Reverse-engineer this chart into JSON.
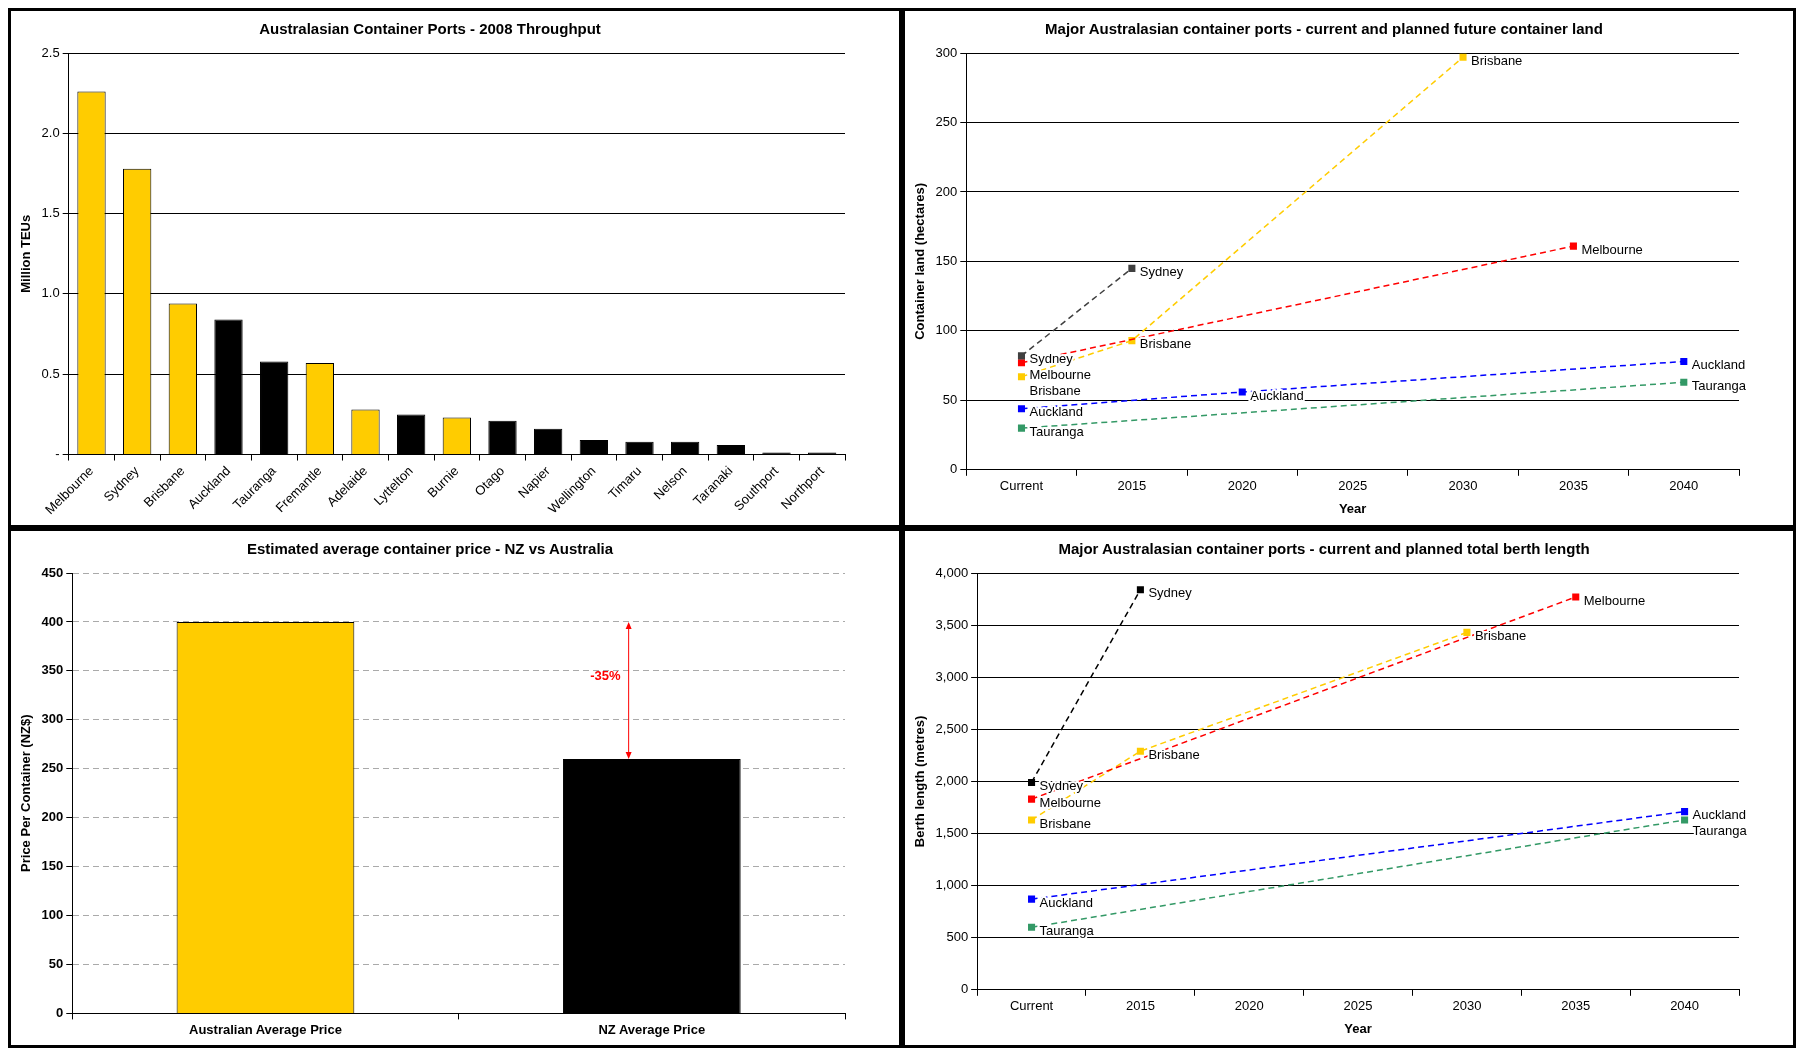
{
  "chart_data": [
    {
      "type": "bar",
      "title": "Australasian Container Ports - 2008 Throughput",
      "ylabel": "Million TEUs",
      "categories": [
        "Melbourne",
        "Sydney",
        "Brisbane",
        "Auckland",
        "Tauranga",
        "Fremantle",
        "Adelaide",
        "Lyttelton",
        "Burnie",
        "Otago",
        "Napier",
        "Wellington",
        "Timaru",
        "Nelson",
        "Taranaki",
        "Southport",
        "Northport"
      ],
      "values": [
        2.26,
        1.78,
        0.94,
        0.84,
        0.58,
        0.57,
        0.28,
        0.25,
        0.23,
        0.21,
        0.16,
        0.09,
        0.08,
        0.08,
        0.06,
        0.01,
        0.005
      ],
      "colors": [
        "#ffcc00",
        "#ffcc00",
        "#ffcc00",
        "#000000",
        "#000000",
        "#ffcc00",
        "#ffcc00",
        "#000000",
        "#ffcc00",
        "#000000",
        "#000000",
        "#000000",
        "#000000",
        "#000000",
        "#000000",
        "#000000",
        "#000000"
      ],
      "ylim": [
        0,
        2.5
      ],
      "yticks": [
        {
          "value": 0,
          "label": "-"
        },
        {
          "value": 0.5,
          "label": "0.5"
        },
        {
          "value": 1,
          "label": "1.0"
        },
        {
          "value": 1.5,
          "label": "1.5"
        },
        {
          "value": 2,
          "label": "2.0"
        },
        {
          "value": 2.5,
          "label": "2.5"
        }
      ],
      "grid": "y",
      "legend": false
    },
    {
      "type": "line",
      "title": "Major Australasian container ports - current and planned future container land",
      "xlabel": "Year",
      "ylabel": "Container land (hectares)",
      "categories": [
        "Current",
        "2015",
        "2020",
        "2025",
        "2030",
        "2035",
        "2040"
      ],
      "series": [
        {
          "name": "Sydney",
          "color": "#404040",
          "values": [
            82,
            145,
            null,
            null,
            null,
            null,
            null
          ]
        },
        {
          "name": "Melbourne",
          "color": "#ff0000",
          "values": [
            77,
            null,
            null,
            null,
            null,
            161,
            null
          ]
        },
        {
          "name": "Brisbane",
          "color": "#ffcc00",
          "values": [
            67,
            93,
            null,
            null,
            297,
            null,
            null
          ]
        },
        {
          "name": "Auckland",
          "color": "#0000ff",
          "values": [
            44,
            null,
            56,
            null,
            null,
            null,
            78
          ]
        },
        {
          "name": "Tauranga",
          "color": "#339966",
          "values": [
            30,
            null,
            null,
            null,
            null,
            null,
            63
          ]
        }
      ],
      "ylim": [
        0,
        300
      ],
      "yticks": [
        0,
        50,
        100,
        150,
        200,
        250,
        300
      ],
      "grid": "y",
      "legend": false,
      "marker": "square",
      "line_style": "dashed"
    },
    {
      "type": "bar",
      "title": "Estimated average container price - NZ vs Australia",
      "ylabel": "Price Per Container (NZ$)",
      "categories": [
        "Australian Average Price",
        "NZ Average Price"
      ],
      "values": [
        400,
        260
      ],
      "colors": [
        "#ffcc00",
        "#000000"
      ],
      "ylim": [
        0,
        450
      ],
      "yticks": [
        0,
        50,
        100,
        150,
        200,
        250,
        300,
        350,
        400,
        450
      ],
      "grid": "y",
      "legend": false,
      "annotations": [
        "-35%"
      ]
    },
    {
      "type": "line",
      "title": "Major Australasian container ports - current and planned total berth length",
      "xlabel": "Year",
      "ylabel": "Berth length (metres)",
      "categories": [
        "Current",
        "2015",
        "2020",
        "2025",
        "2030",
        "2035",
        "2040"
      ],
      "series": [
        {
          "name": "Sydney",
          "color": "#000000",
          "values": [
            1990,
            3840,
            null,
            null,
            null,
            null,
            null
          ]
        },
        {
          "name": "Melbourne",
          "color": "#ff0000",
          "values": [
            1830,
            null,
            null,
            null,
            null,
            3770,
            null
          ]
        },
        {
          "name": "Brisbane",
          "color": "#ffcc00",
          "values": [
            1630,
            2290,
            null,
            null,
            3430,
            null,
            null
          ]
        },
        {
          "name": "Auckland",
          "color": "#0000ff",
          "values": [
            870,
            null,
            null,
            null,
            null,
            null,
            1710
          ]
        },
        {
          "name": "Tauranga",
          "color": "#339966",
          "values": [
            600,
            null,
            null,
            null,
            null,
            null,
            1630
          ]
        }
      ],
      "ylim": [
        0,
        4000
      ],
      "yticks": [
        {
          "value": 0,
          "label": "0"
        },
        {
          "value": 500,
          "label": "500"
        },
        {
          "value": 1000,
          "label": "1,000"
        },
        {
          "value": 1500,
          "label": "1,500"
        },
        {
          "value": 2000,
          "label": "2,000"
        },
        {
          "value": 2500,
          "label": "2,500"
        },
        {
          "value": 3000,
          "label": "3,000"
        },
        {
          "value": 3500,
          "label": "3,500"
        },
        {
          "value": 4000,
          "label": "4,000"
        }
      ],
      "grid": "y",
      "legend": false,
      "marker": "square",
      "line_style": "dashed"
    }
  ]
}
